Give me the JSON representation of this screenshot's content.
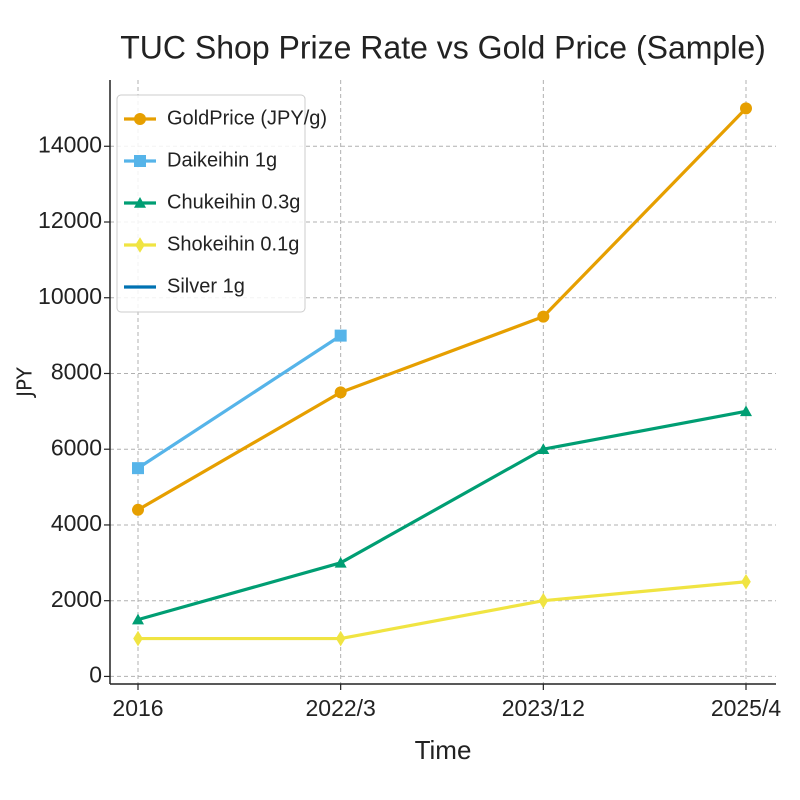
{
  "chart_data": {
    "type": "line",
    "title": "TUC Shop Prize Rate vs Gold Price (Sample)",
    "x_label": "Time",
    "y_label": "JPY",
    "categories": [
      "2016",
      "2022/3",
      "2023/12",
      "2025/4"
    ],
    "series": [
      {
        "name": "GoldPrice (JPY/g)",
        "color": "#E69F00",
        "marker": "circle",
        "values": [
          4400,
          7500,
          9500,
          15000
        ]
      },
      {
        "name": "Daikeihin 1g",
        "color": "#56B4E9",
        "marker": "square",
        "values": [
          5500,
          9000,
          null,
          null
        ]
      },
      {
        "name": "Chukeihin 0.3g",
        "color": "#009E73",
        "marker": "triangle",
        "values": [
          1500,
          3000,
          6000,
          7000
        ]
      },
      {
        "name": "Shokeihin 0.1g",
        "color": "#F0E442",
        "marker": "diamond",
        "values": [
          1000,
          1000,
          2000,
          2500
        ]
      },
      {
        "name": "Silver 1g",
        "color": "#0072B2",
        "marker": "none",
        "values": [
          null,
          null,
          null,
          null
        ]
      }
    ],
    "ylim": [
      -200,
      15750
    ],
    "yticks": [
      0,
      2000,
      4000,
      6000,
      8000,
      10000,
      12000,
      14000
    ],
    "grid": true,
    "legend": "upper left"
  }
}
